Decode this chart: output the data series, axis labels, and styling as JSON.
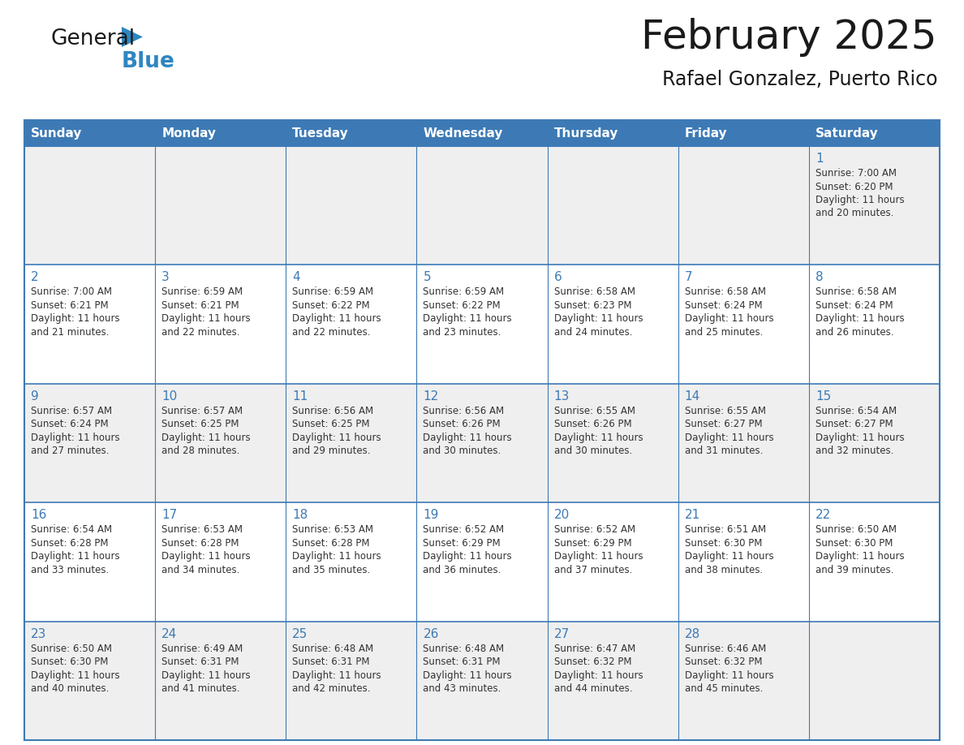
{
  "title": "February 2025",
  "subtitle": "Rafael Gonzalez, Puerto Rico",
  "days_of_week": [
    "Sunday",
    "Monday",
    "Tuesday",
    "Wednesday",
    "Thursday",
    "Friday",
    "Saturday"
  ],
  "header_bg": "#3d7ab5",
  "header_text": "#ffffff",
  "cell_bg_odd": "#efefef",
  "cell_bg_even": "#ffffff",
  "border_color": "#3d7ab5",
  "title_color": "#1a1a1a",
  "subtitle_color": "#1a1a1a",
  "day_number_color": "#3d7ab5",
  "info_color": "#333333",
  "calendar_data": [
    [
      null,
      null,
      null,
      null,
      null,
      null,
      {
        "day": "1",
        "sunrise": "7:00 AM",
        "sunset": "6:20 PM",
        "daylight_hours": "11",
        "daylight_minutes": "20"
      }
    ],
    [
      {
        "day": "2",
        "sunrise": "7:00 AM",
        "sunset": "6:21 PM",
        "daylight_hours": "11",
        "daylight_minutes": "21"
      },
      {
        "day": "3",
        "sunrise": "6:59 AM",
        "sunset": "6:21 PM",
        "daylight_hours": "11",
        "daylight_minutes": "22"
      },
      {
        "day": "4",
        "sunrise": "6:59 AM",
        "sunset": "6:22 PM",
        "daylight_hours": "11",
        "daylight_minutes": "22"
      },
      {
        "day": "5",
        "sunrise": "6:59 AM",
        "sunset": "6:22 PM",
        "daylight_hours": "11",
        "daylight_minutes": "23"
      },
      {
        "day": "6",
        "sunrise": "6:58 AM",
        "sunset": "6:23 PM",
        "daylight_hours": "11",
        "daylight_minutes": "24"
      },
      {
        "day": "7",
        "sunrise": "6:58 AM",
        "sunset": "6:24 PM",
        "daylight_hours": "11",
        "daylight_minutes": "25"
      },
      {
        "day": "8",
        "sunrise": "6:58 AM",
        "sunset": "6:24 PM",
        "daylight_hours": "11",
        "daylight_minutes": "26"
      }
    ],
    [
      {
        "day": "9",
        "sunrise": "6:57 AM",
        "sunset": "6:24 PM",
        "daylight_hours": "11",
        "daylight_minutes": "27"
      },
      {
        "day": "10",
        "sunrise": "6:57 AM",
        "sunset": "6:25 PM",
        "daylight_hours": "11",
        "daylight_minutes": "28"
      },
      {
        "day": "11",
        "sunrise": "6:56 AM",
        "sunset": "6:25 PM",
        "daylight_hours": "11",
        "daylight_minutes": "29"
      },
      {
        "day": "12",
        "sunrise": "6:56 AM",
        "sunset": "6:26 PM",
        "daylight_hours": "11",
        "daylight_minutes": "30"
      },
      {
        "day": "13",
        "sunrise": "6:55 AM",
        "sunset": "6:26 PM",
        "daylight_hours": "11",
        "daylight_minutes": "30"
      },
      {
        "day": "14",
        "sunrise": "6:55 AM",
        "sunset": "6:27 PM",
        "daylight_hours": "11",
        "daylight_minutes": "31"
      },
      {
        "day": "15",
        "sunrise": "6:54 AM",
        "sunset": "6:27 PM",
        "daylight_hours": "11",
        "daylight_minutes": "32"
      }
    ],
    [
      {
        "day": "16",
        "sunrise": "6:54 AM",
        "sunset": "6:28 PM",
        "daylight_hours": "11",
        "daylight_minutes": "33"
      },
      {
        "day": "17",
        "sunrise": "6:53 AM",
        "sunset": "6:28 PM",
        "daylight_hours": "11",
        "daylight_minutes": "34"
      },
      {
        "day": "18",
        "sunrise": "6:53 AM",
        "sunset": "6:28 PM",
        "daylight_hours": "11",
        "daylight_minutes": "35"
      },
      {
        "day": "19",
        "sunrise": "6:52 AM",
        "sunset": "6:29 PM",
        "daylight_hours": "11",
        "daylight_minutes": "36"
      },
      {
        "day": "20",
        "sunrise": "6:52 AM",
        "sunset": "6:29 PM",
        "daylight_hours": "11",
        "daylight_minutes": "37"
      },
      {
        "day": "21",
        "sunrise": "6:51 AM",
        "sunset": "6:30 PM",
        "daylight_hours": "11",
        "daylight_minutes": "38"
      },
      {
        "day": "22",
        "sunrise": "6:50 AM",
        "sunset": "6:30 PM",
        "daylight_hours": "11",
        "daylight_minutes": "39"
      }
    ],
    [
      {
        "day": "23",
        "sunrise": "6:50 AM",
        "sunset": "6:30 PM",
        "daylight_hours": "11",
        "daylight_minutes": "40"
      },
      {
        "day": "24",
        "sunrise": "6:49 AM",
        "sunset": "6:31 PM",
        "daylight_hours": "11",
        "daylight_minutes": "41"
      },
      {
        "day": "25",
        "sunrise": "6:48 AM",
        "sunset": "6:31 PM",
        "daylight_hours": "11",
        "daylight_minutes": "42"
      },
      {
        "day": "26",
        "sunrise": "6:48 AM",
        "sunset": "6:31 PM",
        "daylight_hours": "11",
        "daylight_minutes": "43"
      },
      {
        "day": "27",
        "sunrise": "6:47 AM",
        "sunset": "6:32 PM",
        "daylight_hours": "11",
        "daylight_minutes": "44"
      },
      {
        "day": "28",
        "sunrise": "6:46 AM",
        "sunset": "6:32 PM",
        "daylight_hours": "11",
        "daylight_minutes": "45"
      },
      null
    ]
  ]
}
